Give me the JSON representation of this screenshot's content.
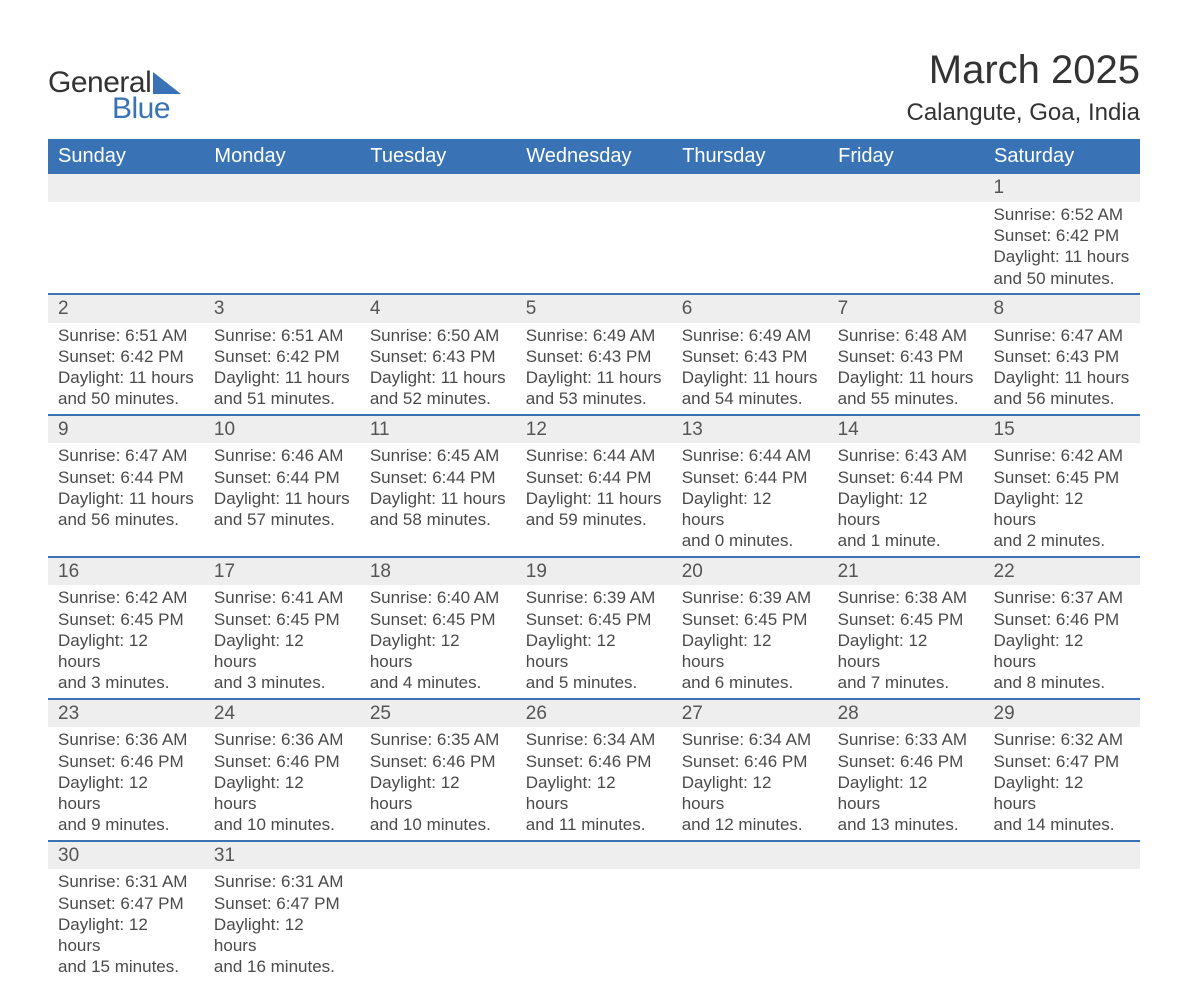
{
  "brand": {
    "name_part1": "General",
    "name_part2": "Blue",
    "triangle_color": "#3973b5"
  },
  "title": {
    "month_year": "March 2025",
    "location": "Calangute, Goa, India"
  },
  "colors": {
    "header_bg": "#3973b5",
    "header_text": "#ffffff",
    "daynum_bg": "#eeeeee",
    "row_divider": "#3973b5",
    "body_text": "#4a4a4a",
    "title_text": "#333333",
    "page_bg": "#ffffff"
  },
  "typography": {
    "month_fontsize_pt": 30,
    "location_fontsize_pt": 18,
    "header_fontsize_pt": 15,
    "daynum_fontsize_pt": 14,
    "body_fontsize_pt": 13
  },
  "weekdays": [
    "Sunday",
    "Monday",
    "Tuesday",
    "Wednesday",
    "Thursday",
    "Friday",
    "Saturday"
  ],
  "weeks": [
    [
      null,
      null,
      null,
      null,
      null,
      null,
      {
        "n": "1",
        "sunrise": "Sunrise: 6:52 AM",
        "sunset": "Sunset: 6:42 PM",
        "day1": "Daylight: 11 hours",
        "day2": "and 50 minutes."
      }
    ],
    [
      {
        "n": "2",
        "sunrise": "Sunrise: 6:51 AM",
        "sunset": "Sunset: 6:42 PM",
        "day1": "Daylight: 11 hours",
        "day2": "and 50 minutes."
      },
      {
        "n": "3",
        "sunrise": "Sunrise: 6:51 AM",
        "sunset": "Sunset: 6:42 PM",
        "day1": "Daylight: 11 hours",
        "day2": "and 51 minutes."
      },
      {
        "n": "4",
        "sunrise": "Sunrise: 6:50 AM",
        "sunset": "Sunset: 6:43 PM",
        "day1": "Daylight: 11 hours",
        "day2": "and 52 minutes."
      },
      {
        "n": "5",
        "sunrise": "Sunrise: 6:49 AM",
        "sunset": "Sunset: 6:43 PM",
        "day1": "Daylight: 11 hours",
        "day2": "and 53 minutes."
      },
      {
        "n": "6",
        "sunrise": "Sunrise: 6:49 AM",
        "sunset": "Sunset: 6:43 PM",
        "day1": "Daylight: 11 hours",
        "day2": "and 54 minutes."
      },
      {
        "n": "7",
        "sunrise": "Sunrise: 6:48 AM",
        "sunset": "Sunset: 6:43 PM",
        "day1": "Daylight: 11 hours",
        "day2": "and 55 minutes."
      },
      {
        "n": "8",
        "sunrise": "Sunrise: 6:47 AM",
        "sunset": "Sunset: 6:43 PM",
        "day1": "Daylight: 11 hours",
        "day2": "and 56 minutes."
      }
    ],
    [
      {
        "n": "9",
        "sunrise": "Sunrise: 6:47 AM",
        "sunset": "Sunset: 6:44 PM",
        "day1": "Daylight: 11 hours",
        "day2": "and 56 minutes."
      },
      {
        "n": "10",
        "sunrise": "Sunrise: 6:46 AM",
        "sunset": "Sunset: 6:44 PM",
        "day1": "Daylight: 11 hours",
        "day2": "and 57 minutes."
      },
      {
        "n": "11",
        "sunrise": "Sunrise: 6:45 AM",
        "sunset": "Sunset: 6:44 PM",
        "day1": "Daylight: 11 hours",
        "day2": "and 58 minutes."
      },
      {
        "n": "12",
        "sunrise": "Sunrise: 6:44 AM",
        "sunset": "Sunset: 6:44 PM",
        "day1": "Daylight: 11 hours",
        "day2": "and 59 minutes."
      },
      {
        "n": "13",
        "sunrise": "Sunrise: 6:44 AM",
        "sunset": "Sunset: 6:44 PM",
        "day1": "Daylight: 12 hours",
        "day2": "and 0 minutes."
      },
      {
        "n": "14",
        "sunrise": "Sunrise: 6:43 AM",
        "sunset": "Sunset: 6:44 PM",
        "day1": "Daylight: 12 hours",
        "day2": "and 1 minute."
      },
      {
        "n": "15",
        "sunrise": "Sunrise: 6:42 AM",
        "sunset": "Sunset: 6:45 PM",
        "day1": "Daylight: 12 hours",
        "day2": "and 2 minutes."
      }
    ],
    [
      {
        "n": "16",
        "sunrise": "Sunrise: 6:42 AM",
        "sunset": "Sunset: 6:45 PM",
        "day1": "Daylight: 12 hours",
        "day2": "and 3 minutes."
      },
      {
        "n": "17",
        "sunrise": "Sunrise: 6:41 AM",
        "sunset": "Sunset: 6:45 PM",
        "day1": "Daylight: 12 hours",
        "day2": "and 3 minutes."
      },
      {
        "n": "18",
        "sunrise": "Sunrise: 6:40 AM",
        "sunset": "Sunset: 6:45 PM",
        "day1": "Daylight: 12 hours",
        "day2": "and 4 minutes."
      },
      {
        "n": "19",
        "sunrise": "Sunrise: 6:39 AM",
        "sunset": "Sunset: 6:45 PM",
        "day1": "Daylight: 12 hours",
        "day2": "and 5 minutes."
      },
      {
        "n": "20",
        "sunrise": "Sunrise: 6:39 AM",
        "sunset": "Sunset: 6:45 PM",
        "day1": "Daylight: 12 hours",
        "day2": "and 6 minutes."
      },
      {
        "n": "21",
        "sunrise": "Sunrise: 6:38 AM",
        "sunset": "Sunset: 6:45 PM",
        "day1": "Daylight: 12 hours",
        "day2": "and 7 minutes."
      },
      {
        "n": "22",
        "sunrise": "Sunrise: 6:37 AM",
        "sunset": "Sunset: 6:46 PM",
        "day1": "Daylight: 12 hours",
        "day2": "and 8 minutes."
      }
    ],
    [
      {
        "n": "23",
        "sunrise": "Sunrise: 6:36 AM",
        "sunset": "Sunset: 6:46 PM",
        "day1": "Daylight: 12 hours",
        "day2": "and 9 minutes."
      },
      {
        "n": "24",
        "sunrise": "Sunrise: 6:36 AM",
        "sunset": "Sunset: 6:46 PM",
        "day1": "Daylight: 12 hours",
        "day2": "and 10 minutes."
      },
      {
        "n": "25",
        "sunrise": "Sunrise: 6:35 AM",
        "sunset": "Sunset: 6:46 PM",
        "day1": "Daylight: 12 hours",
        "day2": "and 10 minutes."
      },
      {
        "n": "26",
        "sunrise": "Sunrise: 6:34 AM",
        "sunset": "Sunset: 6:46 PM",
        "day1": "Daylight: 12 hours",
        "day2": "and 11 minutes."
      },
      {
        "n": "27",
        "sunrise": "Sunrise: 6:34 AM",
        "sunset": "Sunset: 6:46 PM",
        "day1": "Daylight: 12 hours",
        "day2": "and 12 minutes."
      },
      {
        "n": "28",
        "sunrise": "Sunrise: 6:33 AM",
        "sunset": "Sunset: 6:46 PM",
        "day1": "Daylight: 12 hours",
        "day2": "and 13 minutes."
      },
      {
        "n": "29",
        "sunrise": "Sunrise: 6:32 AM",
        "sunset": "Sunset: 6:47 PM",
        "day1": "Daylight: 12 hours",
        "day2": "and 14 minutes."
      }
    ],
    [
      {
        "n": "30",
        "sunrise": "Sunrise: 6:31 AM",
        "sunset": "Sunset: 6:47 PM",
        "day1": "Daylight: 12 hours",
        "day2": "and 15 minutes."
      },
      {
        "n": "31",
        "sunrise": "Sunrise: 6:31 AM",
        "sunset": "Sunset: 6:47 PM",
        "day1": "Daylight: 12 hours",
        "day2": "and 16 minutes."
      },
      null,
      null,
      null,
      null,
      null
    ]
  ]
}
